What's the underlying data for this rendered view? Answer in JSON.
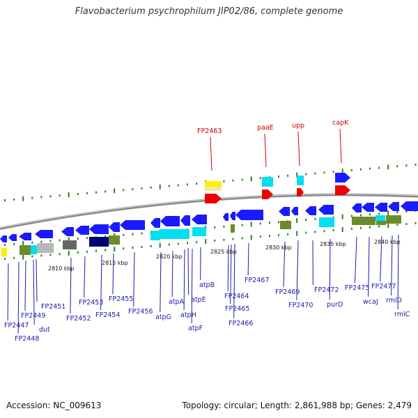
{
  "header": {
    "title": "Flavobacterium psychrophilum JIP02/86, complete genome"
  },
  "footer": {
    "accession": "Accession: NC_009613",
    "summary": "Topology: circular; Length: 2,861,988 bp; Genes: 2,479"
  },
  "colors": {
    "backbone": "#808080",
    "gene_blue": "#1a1aff",
    "label_blue": "#1a1aaa",
    "label_red": "#cc0000",
    "cds_marker": "#2e7d20",
    "cyan": "#00e0f0",
    "olive": "#6a8c2a",
    "navy": "#000070",
    "gray": "#b8b8b8",
    "dark_gray": "#666666",
    "yellow": "#ffee00",
    "red": "#ee0000"
  },
  "scale_ticks": [
    "2810 kbp",
    "2815 kbp",
    "2820 kbp",
    "2825 kbp",
    "2830 kbp",
    "2835 kbp",
    "2840 kbp"
  ],
  "upper_labels": [
    "FP2463",
    "paaE",
    "upp",
    "capK"
  ],
  "lower_labels": [
    "FP2447",
    "FP2448",
    "FP2449",
    "dut",
    "FP2451",
    "FP2452",
    "FP2453",
    "FP2454",
    "FP2455",
    "FP2456",
    "atpG",
    "atpA",
    "atpH",
    "atpF",
    "atpE",
    "atpB",
    "FP2464",
    "FP2465",
    "FP2466",
    "FP2467",
    "FP2469",
    "FP2470",
    "FP2472",
    "purD",
    "FP2475",
    "wcaJ",
    "FP2477",
    "rmlD",
    "rmlC"
  ]
}
